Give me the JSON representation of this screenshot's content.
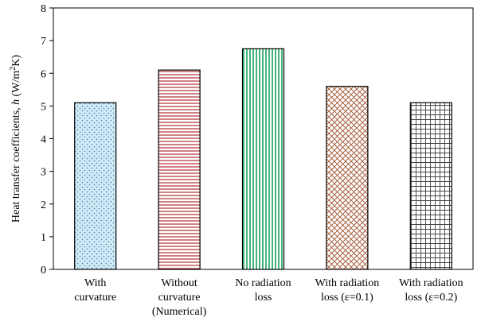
{
  "chart_data": {
    "type": "bar",
    "title": "",
    "xlabel": "",
    "ylabel": "Heat transfer coefficients, h (W/m²K)",
    "ylim": [
      0,
      8
    ],
    "yticks": [
      0,
      1,
      2,
      3,
      4,
      5,
      6,
      7,
      8
    ],
    "grid": false,
    "legend": "none",
    "categories": [
      [
        "With",
        "curvature"
      ],
      [
        "Without",
        "curvature",
        "(Numerical)"
      ],
      [
        "No radiation",
        "loss"
      ],
      [
        "With radiation",
        "loss (ε=0.1)"
      ],
      [
        "With radiation",
        "loss (ε=0.2)"
      ]
    ],
    "values": [
      5.1,
      6.1,
      6.75,
      5.6,
      5.1
    ],
    "bar_styles": [
      {
        "pattern": "dots",
        "fill": "#cfe9f7",
        "mark": "#4a7fa0"
      },
      {
        "pattern": "horizontal-lines",
        "fill": "#ffffff",
        "mark": "#b03030"
      },
      {
        "pattern": "vertical-lines",
        "fill": "#ffffff",
        "mark": "#16a05a"
      },
      {
        "pattern": "diagonal-cross",
        "fill": "#ffffff",
        "mark": "#a0522d"
      },
      {
        "pattern": "grid",
        "fill": "#ffffff",
        "mark": "#444444"
      }
    ]
  }
}
